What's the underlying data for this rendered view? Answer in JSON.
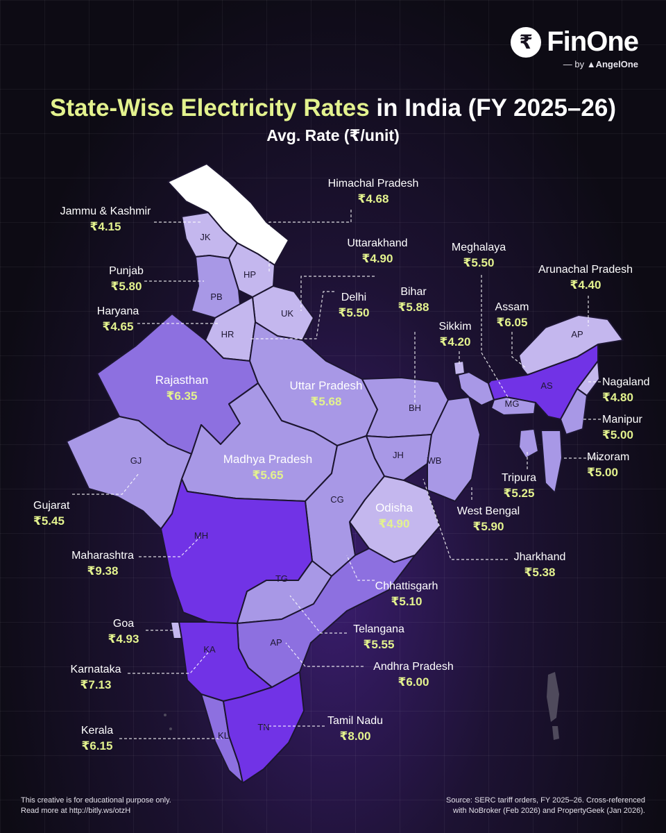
{
  "brand": {
    "mark": "₹",
    "name": "FinOne",
    "by": "— by",
    "parent": "AngelOne"
  },
  "title": {
    "highlight": "State-Wise Electricity Rates",
    "rest": " in India (FY 2025–26)",
    "subtitle": "Avg. Rate (₹/unit)"
  },
  "colors": {
    "accent": "#e3f28e",
    "ladakh": "#ffffff",
    "pale": "#c4b7ee",
    "light": "#a898e6",
    "mid": "#8d70e0",
    "deep": "#7133e6"
  },
  "states": [
    {
      "name": "Jammu & Kashmir",
      "abbr": "JK",
      "rate": "₹4.15"
    },
    {
      "name": "Himachal Pradesh",
      "abbr": "HP",
      "rate": "₹4.68"
    },
    {
      "name": "Uttarakhand",
      "abbr": "UK",
      "rate": "₹4.90"
    },
    {
      "name": "Punjab",
      "abbr": "PB",
      "rate": "₹5.80"
    },
    {
      "name": "Haryana",
      "abbr": "HR",
      "rate": "₹4.65"
    },
    {
      "name": "Delhi",
      "abbr": "",
      "rate": "₹5.50"
    },
    {
      "name": "Rajasthan",
      "abbr": "",
      "rate": "₹6.35"
    },
    {
      "name": "Uttar Pradesh",
      "abbr": "",
      "rate": "₹5.68"
    },
    {
      "name": "Bihar",
      "abbr": "BH",
      "rate": "₹5.88"
    },
    {
      "name": "Sikkim",
      "abbr": "",
      "rate": "₹4.20"
    },
    {
      "name": "Meghalaya",
      "abbr": "MG",
      "rate": "₹5.50"
    },
    {
      "name": "Assam",
      "abbr": "AS",
      "rate": "₹6.05"
    },
    {
      "name": "Arunachal Pradesh",
      "abbr": "AP",
      "rate": "₹4.40"
    },
    {
      "name": "Nagaland",
      "abbr": "",
      "rate": "₹4.80"
    },
    {
      "name": "Manipur",
      "abbr": "",
      "rate": "₹5.00"
    },
    {
      "name": "Mizoram",
      "abbr": "",
      "rate": "₹5.00"
    },
    {
      "name": "Tripura",
      "abbr": "",
      "rate": "₹5.25"
    },
    {
      "name": "West Bengal",
      "abbr": "WB",
      "rate": "₹5.90"
    },
    {
      "name": "Jharkhand",
      "abbr": "JH",
      "rate": "₹5.38"
    },
    {
      "name": "Odisha",
      "abbr": "",
      "rate": "₹4.90"
    },
    {
      "name": "Chhattisgarh",
      "abbr": "CG",
      "rate": "₹5.10"
    },
    {
      "name": "Madhya Pradesh",
      "abbr": "",
      "rate": "₹5.65"
    },
    {
      "name": "Gujarat",
      "abbr": "GJ",
      "rate": "₹5.45"
    },
    {
      "name": "Maharashtra",
      "abbr": "MH",
      "rate": "₹9.38"
    },
    {
      "name": "Telangana",
      "abbr": "TG",
      "rate": "₹5.55"
    },
    {
      "name": "Goa",
      "abbr": "",
      "rate": "₹4.93"
    },
    {
      "name": "Andhra Pradesh",
      "abbr": "AP",
      "rate": "₹6.00"
    },
    {
      "name": "Karnataka",
      "abbr": "KA",
      "rate": "₹7.13"
    },
    {
      "name": "Tamil Nadu",
      "abbr": "TN",
      "rate": "₹8.00"
    },
    {
      "name": "Kerala",
      "abbr": "KL",
      "rate": "₹6.15"
    }
  ],
  "footer": {
    "disclaimer": "This creative is for educational purpose only.",
    "link": "Read more at http://bitly.ws/otzH",
    "source_1": "Source: SERC tariff orders, FY 2025–26. Cross-referenced",
    "source_2": "with NoBroker (Feb 2026) and PropertyGeek (Jan 2026)."
  }
}
